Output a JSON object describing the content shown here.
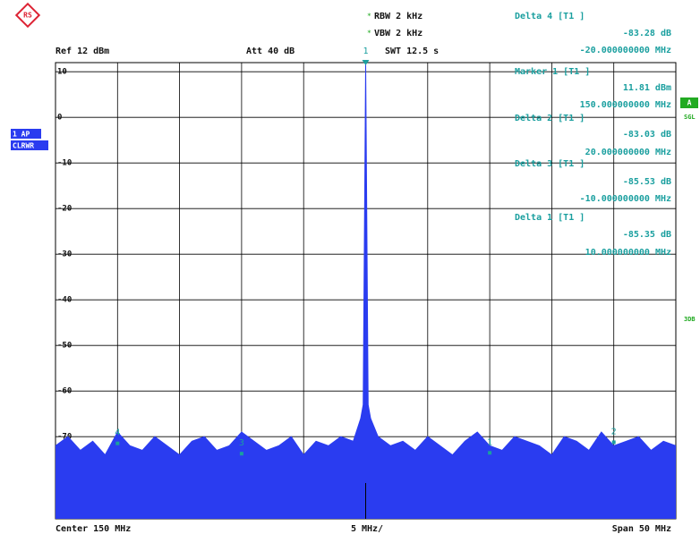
{
  "chart_data": {
    "type": "line",
    "ref": "Ref 12 dBm",
    "att": "Att 40 dB",
    "rbw": "RBW 2 kHz",
    "vbw": "VBW 2 kHz",
    "swt": "SWT 12.5 s",
    "marker_table": [
      {
        "title": "Delta 4 [T1 ]",
        "value": "-83.28 dB",
        "freq": "-20.000000000 MHz"
      },
      {
        "title": "Marker 1 [T1 ]",
        "value": "11.81 dBm",
        "freq": "150.000000000 MHz"
      },
      {
        "title": "Delta 2 [T1 ]",
        "value": "-83.03 dB",
        "freq": "20.000000000 MHz"
      },
      {
        "title": "Delta 3 [T1 ]",
        "value": "-85.53 dB",
        "freq": "-10.000000000 MHz"
      },
      {
        "title": "Delta 1 [T1 ]",
        "value": "-85.35 dB",
        "freq": "10.000000000 MHz"
      }
    ],
    "side_labels": {
      "trace": "1 AP",
      "mode": "CLRWR",
      "a": "A",
      "sgl": "SGL",
      "db3": "3DB"
    },
    "footer": {
      "center": "Center 150 MHz",
      "div": "5 MHz/",
      "span": "Span 50 MHz"
    },
    "xlim": [
      125,
      175
    ],
    "xticks": [
      125,
      130,
      135,
      140,
      145,
      150,
      155,
      160,
      165,
      170,
      175
    ],
    "ylim": [
      -88,
      12
    ],
    "yticks": [
      10,
      0,
      -10,
      -20,
      -30,
      -40,
      -50,
      -60,
      -70
    ],
    "grid": true,
    "series": [
      {
        "color": "#2a3cf0",
        "x": [
          125,
          126,
          127,
          128,
          129,
          130,
          131,
          132,
          133,
          134,
          135,
          136,
          137,
          138,
          139,
          140,
          141,
          142,
          143,
          144,
          145,
          146,
          147,
          148,
          149,
          149.6,
          149.8,
          150,
          150.2,
          150.4,
          151,
          152,
          153,
          154,
          155,
          156,
          157,
          158,
          159,
          160,
          161,
          162,
          163,
          164,
          165,
          166,
          167,
          168,
          169,
          170,
          171,
          172,
          173,
          174,
          175
        ],
        "values": [
          -72,
          -70,
          -73,
          -71,
          -74,
          -69,
          -72,
          -73,
          -70,
          -72,
          -74,
          -71,
          -70,
          -73,
          -72,
          -69,
          -71,
          -73,
          -72,
          -70,
          -74,
          -71,
          -72,
          -70,
          -71,
          -66,
          -63,
          11.81,
          -63,
          -66,
          -70,
          -72,
          -71,
          -73,
          -70,
          -72,
          -74,
          -71,
          -69,
          -72,
          -73,
          -70,
          -71,
          -72,
          -74,
          -70,
          -71,
          -73,
          -69,
          -72,
          -71,
          -70,
          -73,
          -71,
          -72
        ]
      }
    ],
    "markers": [
      {
        "label": "1",
        "x": 150,
        "y": 11.81
      },
      {
        "label": "4",
        "x": 130,
        "y": -71.47
      },
      {
        "label": "3",
        "x": 140,
        "y": -73.72
      },
      {
        "label": "1",
        "x": 160,
        "y": -73.54
      },
      {
        "label": "2",
        "x": 170,
        "y": -71.22
      }
    ]
  }
}
